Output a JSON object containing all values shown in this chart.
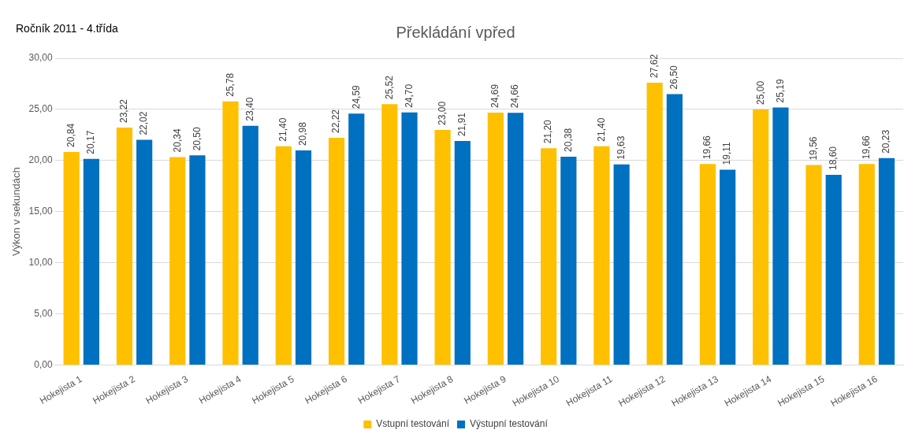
{
  "chart_data": {
    "type": "bar",
    "title": "Překládání vpřed",
    "ylabel": "Výkon v sekundách",
    "annotations": [
      "Ročník 2011 - 4.třída"
    ],
    "categories": [
      "Hokejista 1",
      "Hokejista 2",
      "Hokejista 3",
      "Hokejista 4",
      "Hokejista 5",
      "Hokejista 6",
      "Hokejista 7",
      "Hokejista 8",
      "Hokejista 9",
      "Hokejista 10",
      "Hokejista 11",
      "Hokejista 12",
      "Hokejista 13",
      "Hokejista 14",
      "Hokejista 15",
      "Hokejista 16"
    ],
    "series": [
      {
        "name": "Vstupní testování",
        "color": "#ffc000",
        "values": [
          20.84,
          23.22,
          20.34,
          25.78,
          21.4,
          22.22,
          25.52,
          23.0,
          24.69,
          21.2,
          21.4,
          27.62,
          19.66,
          25.0,
          19.56,
          19.66
        ],
        "value_labels": [
          "20,84",
          "23,22",
          "20,34",
          "25,78",
          "21,40",
          "22,22",
          "25,52",
          "23,00",
          "24,69",
          "21,20",
          "21,40",
          "27,62",
          "19,66",
          "25,00",
          "19,56",
          "19,66"
        ]
      },
      {
        "name": "Výstupní testování",
        "color": "#0070c0",
        "values": [
          20.17,
          22.02,
          20.5,
          23.4,
          20.98,
          24.59,
          24.7,
          21.91,
          24.66,
          20.38,
          19.63,
          26.5,
          19.11,
          25.19,
          18.6,
          20.23
        ],
        "value_labels": [
          "20,17",
          "22,02",
          "20,50",
          "23,40",
          "20,98",
          "24,59",
          "24,70",
          "21,91",
          "24,66",
          "20,38",
          "19,63",
          "26,50",
          "19,11",
          "25,19",
          "18,60",
          "20,23"
        ]
      }
    ],
    "ylim": [
      0,
      30
    ],
    "yticks": [
      {
        "value": 0,
        "label": "0,00"
      },
      {
        "value": 5,
        "label": "5,00"
      },
      {
        "value": 10,
        "label": "10,00"
      },
      {
        "value": 15,
        "label": "15,00"
      },
      {
        "value": 20,
        "label": "20,00"
      },
      {
        "value": 25,
        "label": "25,00"
      },
      {
        "value": 30,
        "label": "30,00"
      }
    ],
    "grid": "y",
    "legend": "bottom"
  }
}
